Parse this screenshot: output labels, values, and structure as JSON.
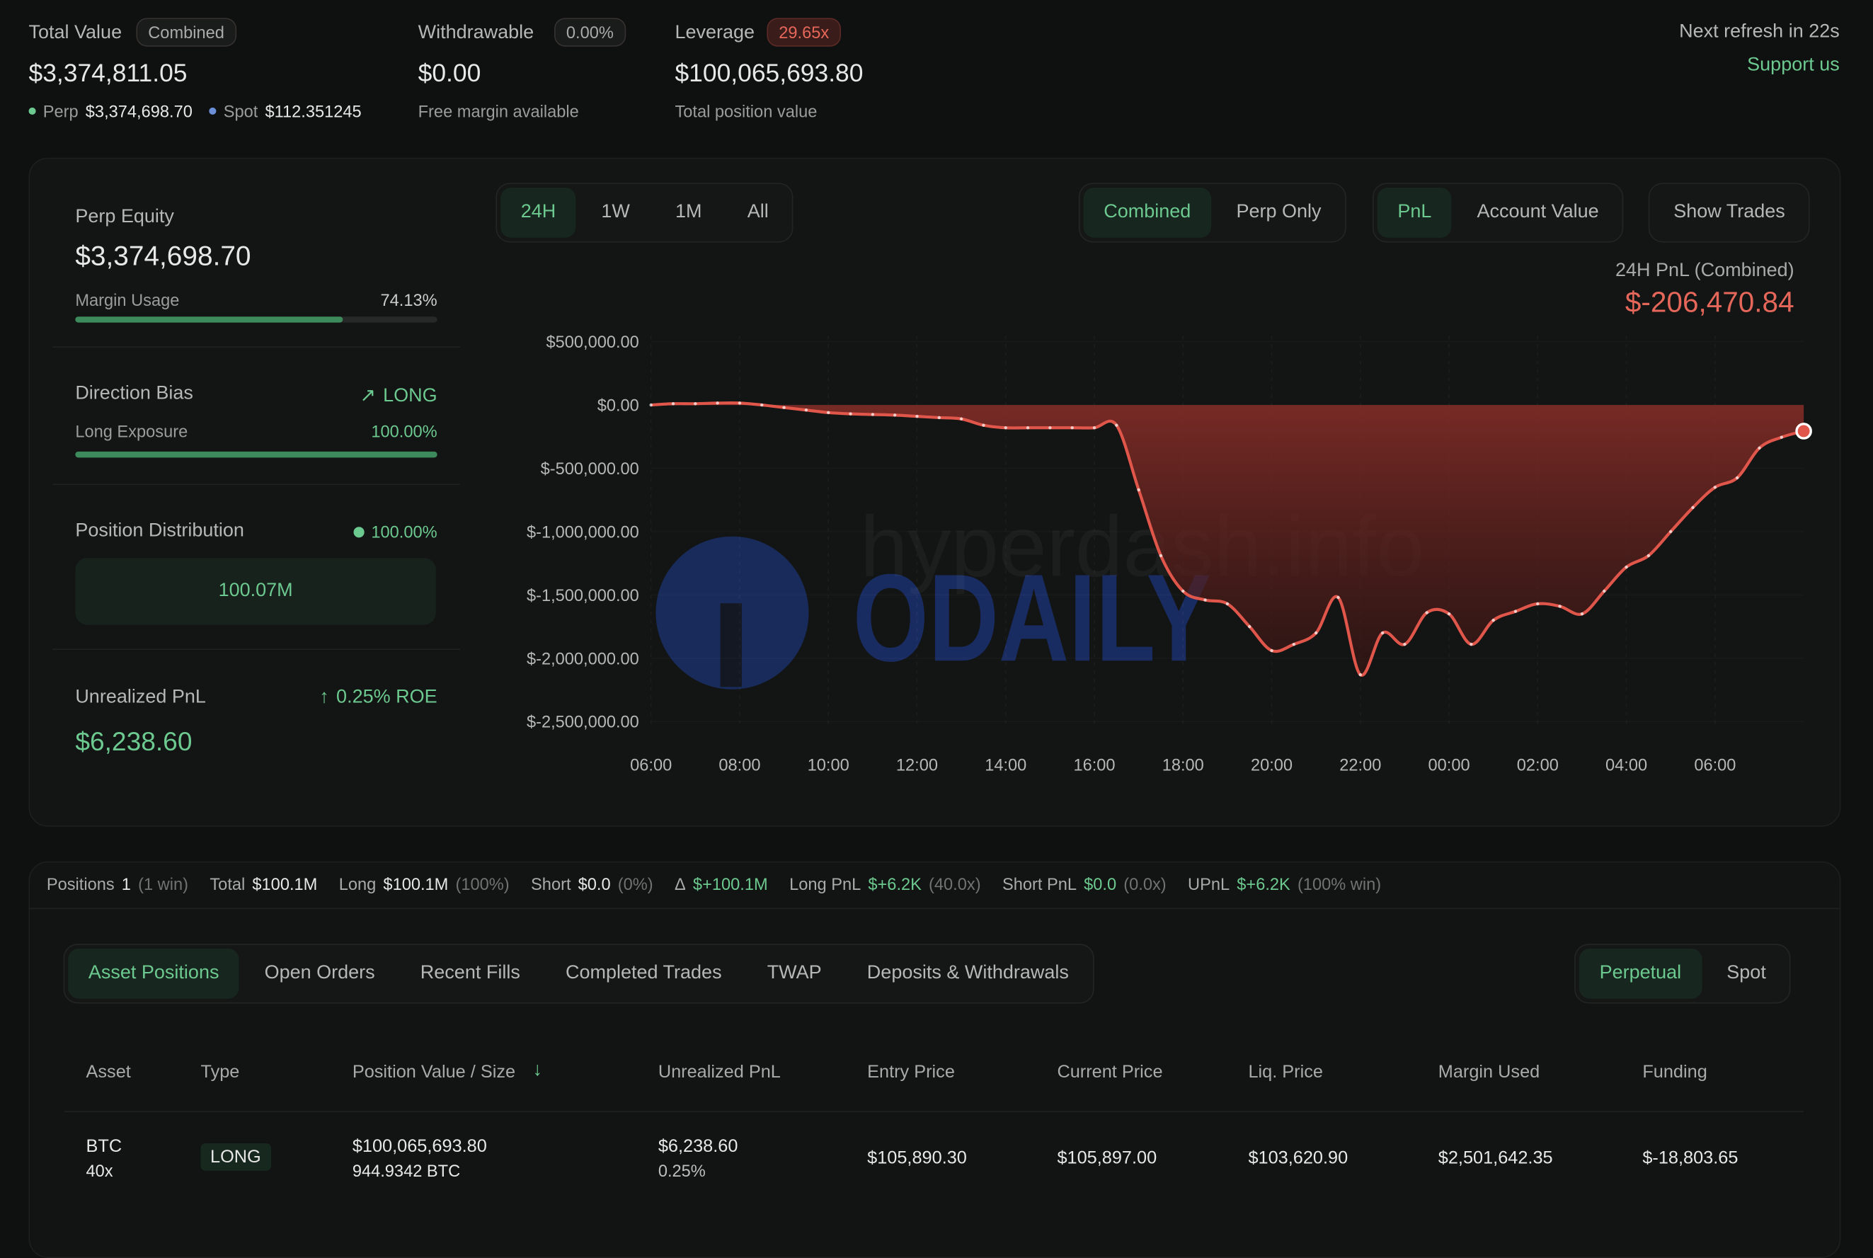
{
  "header": {
    "total_value": {
      "label": "Total Value",
      "badge": "Combined",
      "value": "$3,374,811.05",
      "perp_label": "Perp",
      "perp_value": "$3,374,698.70",
      "spot_label": "Spot",
      "spot_value": "$112.351245"
    },
    "withdrawable": {
      "label": "Withdrawable",
      "badge": "0.00%",
      "value": "$0.00",
      "note": "Free margin available"
    },
    "leverage": {
      "label": "Leverage",
      "badge": "29.65x",
      "value": "$100,065,693.80",
      "note": "Total position value"
    },
    "refresh": "Next refresh in 22s",
    "support": "Support us"
  },
  "sidebar": {
    "perp_equity": {
      "label": "Perp Equity",
      "value": "$3,374,698.70"
    },
    "margin_usage": {
      "label": "Margin Usage",
      "value": "74.13%"
    },
    "direction_bias": {
      "label": "Direction Bias",
      "value": "LONG"
    },
    "long_exposure": {
      "label": "Long Exposure",
      "value": "100.00%"
    },
    "position_distribution": {
      "label": "Position Distribution",
      "value": "100.00%",
      "amount": "100.07M"
    },
    "unrealized_pnl": {
      "label": "Unrealized PnL",
      "roe": "0.25% ROE",
      "value": "$6,238.60"
    }
  },
  "controls": {
    "ranges": [
      "24H",
      "1W",
      "1M",
      "All"
    ],
    "modes": [
      "Combined",
      "Perp Only"
    ],
    "metrics": [
      "PnL",
      "Account Value"
    ],
    "trades": "Show Trades"
  },
  "watermarks": [
    "hyperdash.info",
    "ODAILY"
  ],
  "chart_data": {
    "type": "area",
    "title": "24H PnL (Combined)",
    "subtitle": "$-206,470.84",
    "color": "#e0564a",
    "grid": true,
    "categories": [
      "06:00",
      null,
      null,
      null,
      "08:00",
      null,
      null,
      null,
      "10:00",
      null,
      null,
      null,
      "12:00",
      null,
      null,
      null,
      "14:00",
      null,
      null,
      null,
      "16:00",
      null,
      null,
      null,
      "18:00",
      null,
      null,
      null,
      "20:00",
      null,
      null,
      null,
      "22:00",
      null,
      null,
      null,
      "00:00",
      null,
      null,
      null,
      "02:00",
      null,
      null,
      null,
      "04:00",
      null,
      null,
      null,
      "06:00",
      null,
      null,
      null,
      null
    ],
    "values": [
      0,
      10000,
      10000,
      15000,
      15000,
      0,
      -20000,
      -40000,
      -60000,
      -70000,
      -75000,
      -80000,
      -90000,
      -100000,
      -110000,
      -160000,
      -180000,
      -180000,
      -180000,
      -180000,
      -180000,
      -160000,
      -670000,
      -1190000,
      -1470000,
      -1540000,
      -1570000,
      -1750000,
      -1940000,
      -1890000,
      -1800000,
      -1520000,
      -2130000,
      -1800000,
      -1890000,
      -1640000,
      -1650000,
      -1890000,
      -1700000,
      -1630000,
      -1570000,
      -1590000,
      -1650000,
      -1470000,
      -1280000,
      -1190000,
      -1000000,
      -810000,
      -650000,
      -575000,
      -340000,
      -255000,
      -206470.84
    ],
    "ylim": [
      -2500000,
      500000
    ],
    "yticks": [
      {
        "value": 500000,
        "label": "$500,000.00"
      },
      {
        "value": 0,
        "label": "$0.00"
      },
      {
        "value": -500000,
        "label": "$-500,000.00"
      },
      {
        "value": -1000000,
        "label": "$-1,000,000.00"
      },
      {
        "value": -1500000,
        "label": "$-1,500,000.00"
      },
      {
        "value": -2000000,
        "label": "$-2,000,000.00"
      },
      {
        "value": -2500000,
        "label": "$-2,500,000.00"
      }
    ]
  },
  "summary": [
    {
      "label": "Positions",
      "value": "1",
      "note": "(1 win)"
    },
    {
      "label": "Total",
      "value": "$100.1M"
    },
    {
      "label": "Long",
      "value": "$100.1M",
      "note": "(100%)"
    },
    {
      "label": "Short",
      "value": "$0.0",
      "note": "(0%)"
    },
    {
      "label": "Δ",
      "value": "$+100.1M"
    },
    {
      "label": "Long PnL",
      "value": "$+6.2K",
      "note": "(40.0x)"
    },
    {
      "label": "Short PnL",
      "value": "$0.0",
      "note": "(0.0x)"
    },
    {
      "label": "UPnL",
      "value": "$+6.2K",
      "note": "(100% win)"
    }
  ],
  "tabs": [
    "Asset Positions",
    "Open Orders",
    "Recent Fills",
    "Completed Trades",
    "TWAP",
    "Deposits & Withdrawals"
  ],
  "markets": [
    "Perpetual",
    "Spot"
  ],
  "table": {
    "columns": [
      "Asset",
      "Type",
      "Position Value / Size",
      "Unrealized PnL",
      "Entry Price",
      "Current Price",
      "Liq. Price",
      "Margin Used",
      "Funding"
    ],
    "rows": [
      {
        "asset": "BTC",
        "leverage": "40x",
        "type": "LONG",
        "position_value": "$100,065,693.80",
        "size": "944.9342 BTC",
        "upnl": "$6,238.60",
        "upnl_pct": "0.25%",
        "entry": "$105,890.30",
        "current": "$105,897.00",
        "liq": "$103,620.90",
        "margin": "$2,501,642.35",
        "funding": "$-18,803.65"
      }
    ]
  }
}
